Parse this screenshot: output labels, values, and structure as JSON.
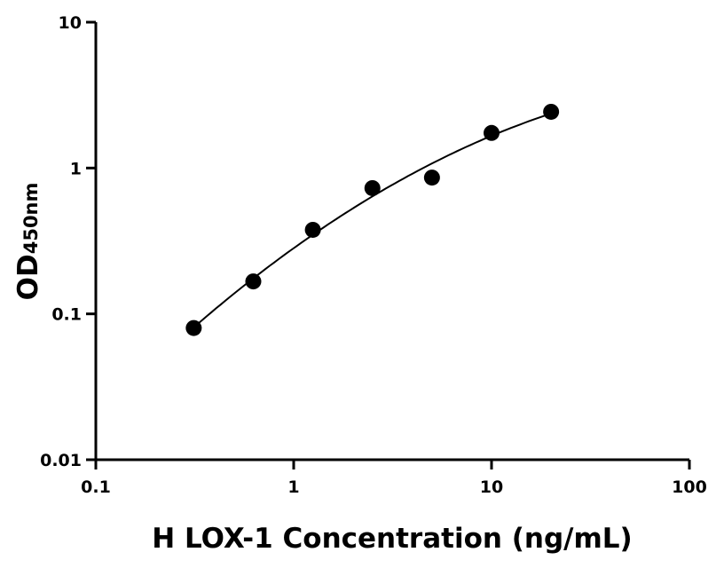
{
  "chart_data": {
    "type": "scatter",
    "title": "",
    "xlabel": "H LOX-1 Concentration (ng/mL)",
    "ylabel_main": "OD",
    "ylabel_sub": "450nm",
    "x_scale": "log",
    "y_scale": "log",
    "xlim": [
      0.1,
      100
    ],
    "ylim": [
      0.01,
      10
    ],
    "x_ticks": [
      "0.1",
      "1",
      "10",
      "100"
    ],
    "y_ticks": [
      "0.01",
      "0.1",
      "1",
      "10"
    ],
    "grid": false,
    "fit_curve": true,
    "marker_color": "#000000",
    "series": [
      {
        "x": [
          0.3125,
          0.625,
          1.25,
          2.5,
          5,
          10,
          20
        ],
        "y": [
          0.08,
          0.167,
          0.377,
          0.728,
          0.86,
          1.74,
          2.43
        ]
      }
    ]
  }
}
